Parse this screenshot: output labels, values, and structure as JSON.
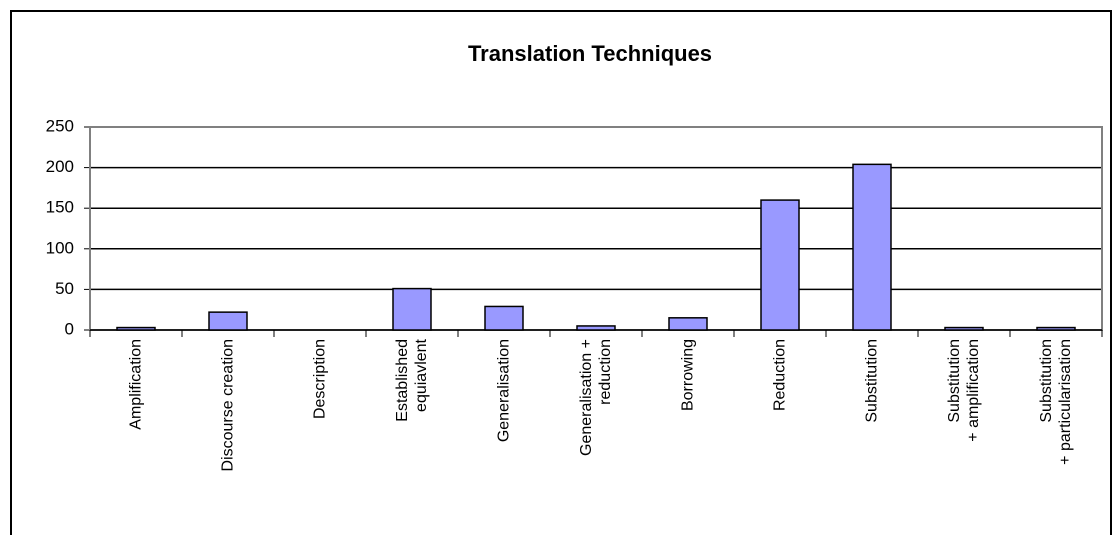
{
  "chart_data": {
    "type": "bar",
    "title": "Translation Techniques",
    "categories": [
      "Amplification",
      "Discourse creation",
      "Description",
      "Established\nequiavlent",
      "Generalisation",
      "Generalisation +\nreduction",
      "Borrowing",
      "Reduction",
      "Substitution",
      "Substitution\n+ amplification",
      "Substitution\n+ particularisation"
    ],
    "values": [
      3,
      22,
      0,
      51,
      29,
      5,
      15,
      160,
      204,
      3,
      3
    ],
    "color": "#9999ff",
    "ylim": [
      0,
      250
    ],
    "yticks": [
      0,
      50,
      100,
      150,
      200,
      250
    ],
    "grid": true
  }
}
